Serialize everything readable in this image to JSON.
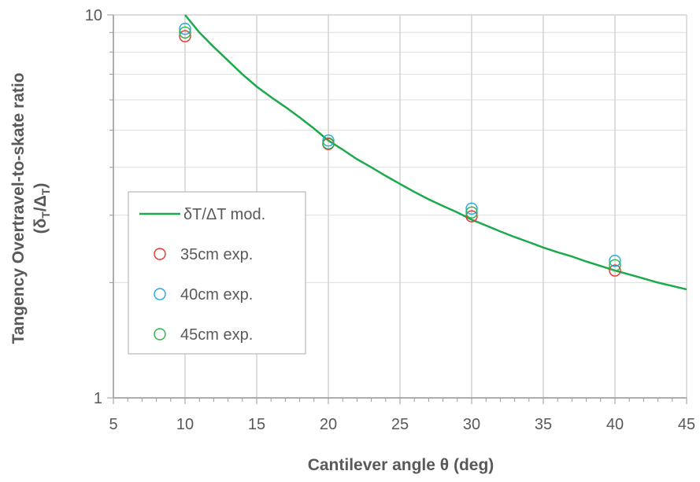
{
  "chart_data": {
    "type": "scatter",
    "title": "",
    "xlabel": "Cantilever angle θ (deg)",
    "ylabel_line1": "Tangency Overtravel-to-skate ratio",
    "ylabel_line2": {
      "open": "(δ",
      "sub1": "T",
      "slash": "/Δ",
      "sub2": "T",
      "close": ")"
    },
    "x_range": [
      5,
      45
    ],
    "y_range": [
      1,
      10
    ],
    "y_scale": "log",
    "x_ticks": [
      "5",
      "10",
      "15",
      "20",
      "25",
      "30",
      "35",
      "40",
      "45"
    ],
    "y_ticks": [
      "1",
      "10"
    ],
    "grid": true,
    "legend_position": "center-left",
    "series": [
      {
        "name": "δT/ΔT mod.",
        "kind": "line",
        "color": "#1aaa4b",
        "x": [
          10,
          11,
          12,
          13,
          14,
          15,
          16,
          17,
          18,
          19,
          20,
          21,
          22,
          23,
          24,
          25,
          26,
          27,
          28,
          29,
          30,
          31,
          32,
          33,
          34,
          35,
          36,
          37,
          38,
          39,
          40,
          41,
          42,
          43,
          44,
          45
        ],
        "y": [
          10.0,
          9.0,
          8.25,
          7.6,
          7.0,
          6.5,
          6.1,
          5.75,
          5.4,
          5.05,
          4.7,
          4.45,
          4.2,
          4.0,
          3.8,
          3.62,
          3.45,
          3.3,
          3.17,
          3.05,
          2.92,
          2.82,
          2.72,
          2.63,
          2.55,
          2.47,
          2.4,
          2.34,
          2.27,
          2.21,
          2.15,
          2.1,
          2.05,
          2.0,
          1.96,
          1.92
        ]
      },
      {
        "name": "35cm exp.",
        "kind": "marker",
        "color": "#e8302d",
        "x": [
          10,
          20,
          30,
          40
        ],
        "y": [
          8.8,
          4.6,
          2.98,
          2.15
        ]
      },
      {
        "name": "40cm exp.",
        "kind": "marker",
        "color": "#1eaadc",
        "x": [
          10,
          20,
          30,
          40
        ],
        "y": [
          9.2,
          4.7,
          3.12,
          2.28
        ]
      },
      {
        "name": "45cm exp.",
        "kind": "marker",
        "color": "#2bb24b",
        "x": [
          10,
          20,
          30,
          40
        ],
        "y": [
          9.0,
          4.62,
          3.05,
          2.22
        ]
      }
    ]
  }
}
